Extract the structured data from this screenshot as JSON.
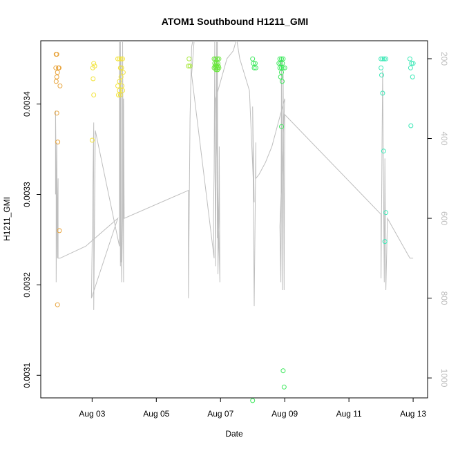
{
  "chart_data": {
    "type": "scatter",
    "title": "ATOM1 Southbound H1211_GMI",
    "xlabel": "Date",
    "ylabel": "H1211_GMI",
    "x_ticks": [
      "Aug 03",
      "Aug 05",
      "Aug 07",
      "Aug 09",
      "Aug 11",
      "Aug 13"
    ],
    "x_tick_days": [
      3,
      5,
      7,
      9,
      11,
      13
    ],
    "xlim": [
      1.4,
      13.45
    ],
    "ylim": [
      0.003075,
      0.00347
    ],
    "y_ticks": [
      "0.0031",
      "0.0032",
      "0.0033",
      "0.0034"
    ],
    "y_tick_values": [
      0.0031,
      0.0032,
      0.0033,
      0.0034
    ],
    "y2_ticks": [
      "200",
      "400",
      "600",
      "800",
      "1000"
    ],
    "y2_tick_values": [
      200,
      400,
      600,
      800,
      1000
    ],
    "y2lim": [
      1050,
      155
    ],
    "line_color": "#bebebe",
    "series": [
      {
        "color": "#e8a33a",
        "points": [
          [
            1.88,
            0.003455
          ],
          [
            1.9,
            0.003455
          ],
          [
            1.87,
            0.00344
          ],
          [
            1.92,
            0.003435
          ],
          [
            1.95,
            0.00344
          ],
          [
            1.97,
            0.00344
          ],
          [
            1.9,
            0.00343
          ],
          [
            1.88,
            0.003425
          ],
          [
            2.0,
            0.00342
          ],
          [
            1.9,
            0.00339
          ],
          [
            1.93,
            0.003358
          ],
          [
            1.98,
            0.00326
          ],
          [
            1.92,
            0.003178
          ]
        ]
      },
      {
        "color": "#f2e33a",
        "points": [
          [
            3.05,
            0.003445
          ],
          [
            3.08,
            0.003442
          ],
          [
            3.02,
            0.00344
          ],
          [
            3.03,
            0.003428
          ],
          [
            3.05,
            0.00341
          ],
          [
            3.0,
            0.00336
          ],
          [
            3.8,
            0.00345
          ],
          [
            3.85,
            0.00345
          ],
          [
            3.9,
            0.00345
          ],
          [
            3.95,
            0.00345
          ],
          [
            3.88,
            0.00344
          ],
          [
            3.92,
            0.00344
          ],
          [
            3.97,
            0.003435
          ],
          [
            3.9,
            0.00343
          ],
          [
            3.85,
            0.003425
          ],
          [
            3.8,
            0.00342
          ],
          [
            3.93,
            0.00342
          ],
          [
            3.85,
            0.003415
          ],
          [
            3.95,
            0.003415
          ],
          [
            3.82,
            0.00341
          ],
          [
            3.88,
            0.00341
          ]
        ]
      },
      {
        "color": "#a6e83a",
        "points": [
          [
            6.0,
            0.003442
          ],
          [
            6.05,
            0.003442
          ],
          [
            6.02,
            0.00345
          ]
        ]
      },
      {
        "color": "#68e83a",
        "points": [
          [
            6.8,
            0.00345
          ],
          [
            6.85,
            0.00345
          ],
          [
            6.9,
            0.00345
          ],
          [
            6.95,
            0.00345
          ],
          [
            6.82,
            0.003445
          ],
          [
            6.87,
            0.003445
          ],
          [
            6.92,
            0.003445
          ],
          [
            6.8,
            0.00344
          ],
          [
            6.85,
            0.00344
          ],
          [
            6.9,
            0.00344
          ],
          [
            6.95,
            0.00344
          ],
          [
            6.83,
            0.003442
          ],
          [
            6.88,
            0.003442
          ],
          [
            6.93,
            0.003442
          ],
          [
            6.86,
            0.003438
          ],
          [
            6.91,
            0.003438
          ]
        ]
      },
      {
        "color": "#3ae85a",
        "points": [
          [
            8.0,
            0.00345
          ],
          [
            8.02,
            0.003445
          ],
          [
            8.05,
            0.00344
          ],
          [
            8.08,
            0.003445
          ],
          [
            8.1,
            0.00344
          ],
          [
            8.0,
            0.003072
          ],
          [
            8.85,
            0.00345
          ],
          [
            8.9,
            0.00345
          ],
          [
            8.95,
            0.00345
          ],
          [
            8.82,
            0.003445
          ],
          [
            8.88,
            0.003445
          ],
          [
            8.93,
            0.003445
          ],
          [
            8.85,
            0.00344
          ],
          [
            8.9,
            0.00344
          ],
          [
            8.95,
            0.00344
          ],
          [
            9.0,
            0.00344
          ],
          [
            8.9,
            0.003435
          ],
          [
            8.87,
            0.00343
          ],
          [
            8.92,
            0.003425
          ],
          [
            8.9,
            0.003375
          ],
          [
            8.95,
            0.003105
          ],
          [
            8.98,
            0.003087
          ]
        ]
      },
      {
        "color": "#3ae8b6",
        "points": [
          [
            12.0,
            0.00345
          ],
          [
            12.05,
            0.00345
          ],
          [
            12.1,
            0.00345
          ],
          [
            12.15,
            0.00345
          ],
          [
            12.0,
            0.00344
          ],
          [
            12.02,
            0.003432
          ],
          [
            12.05,
            0.003412
          ],
          [
            12.08,
            0.003348
          ],
          [
            12.15,
            0.00328
          ],
          [
            12.12,
            0.003248
          ],
          [
            12.9,
            0.00345
          ],
          [
            12.95,
            0.003445
          ],
          [
            13.0,
            0.003445
          ],
          [
            12.92,
            0.00344
          ],
          [
            12.98,
            0.00343
          ],
          [
            12.93,
            0.003376
          ]
        ]
      }
    ],
    "altitude_track": [
      [
        1.86,
        540
      ],
      [
        1.86,
        330
      ],
      [
        1.88,
        500
      ],
      [
        1.88,
        760
      ],
      [
        1.9,
        560
      ],
      [
        1.9,
        410
      ],
      [
        1.92,
        700
      ],
      [
        1.92,
        610
      ],
      [
        1.94,
        500
      ],
      [
        1.94,
        700
      ],
      [
        2.0,
        700
      ],
      [
        2.8,
        670
      ],
      [
        3.8,
        600
      ],
      [
        2.98,
        800
      ],
      [
        3.05,
        360
      ],
      [
        3.05,
        830
      ],
      [
        3.1,
        380
      ],
      [
        3.85,
        670
      ],
      [
        3.85,
        120
      ],
      [
        3.88,
        720
      ],
      [
        3.88,
        150
      ],
      [
        3.9,
        710
      ],
      [
        3.9,
        200
      ],
      [
        3.92,
        760
      ],
      [
        3.95,
        600
      ],
      [
        3.95,
        150
      ],
      [
        3.98,
        760
      ],
      [
        3.98,
        300
      ],
      [
        4.0,
        600
      ],
      [
        6.0,
        530
      ],
      [
        6.0,
        800
      ],
      [
        6.05,
        350
      ],
      [
        6.1,
        170
      ],
      [
        6.2,
        130
      ],
      [
        6.1,
        240
      ],
      [
        6.8,
        700
      ],
      [
        6.78,
        600
      ],
      [
        6.8,
        480
      ],
      [
        6.82,
        150
      ],
      [
        6.84,
        720
      ],
      [
        6.86,
        500
      ],
      [
        6.88,
        150
      ],
      [
        6.9,
        650
      ],
      [
        6.9,
        140
      ],
      [
        6.92,
        740
      ],
      [
        6.95,
        600
      ],
      [
        6.96,
        420
      ],
      [
        6.98,
        760
      ],
      [
        6.85,
        300
      ],
      [
        7.2,
        200
      ],
      [
        7.4,
        180
      ],
      [
        7.5,
        150
      ],
      [
        7.6,
        200
      ],
      [
        7.9,
        280
      ],
      [
        8.05,
        560
      ],
      [
        8.0,
        320
      ],
      [
        8.05,
        820
      ],
      [
        8.1,
        410
      ],
      [
        8.1,
        500
      ],
      [
        8.2,
        490
      ],
      [
        8.4,
        460
      ],
      [
        8.6,
        420
      ],
      [
        8.8,
        360
      ],
      [
        9.0,
        300
      ],
      [
        8.85,
        620
      ],
      [
        8.88,
        760
      ],
      [
        8.9,
        200
      ],
      [
        8.92,
        780
      ],
      [
        8.95,
        220
      ],
      [
        8.98,
        780
      ],
      [
        9.0,
        340
      ],
      [
        12.0,
        590
      ],
      [
        12.0,
        750
      ],
      [
        12.05,
        230
      ],
      [
        12.1,
        760
      ],
      [
        12.12,
        450
      ],
      [
        12.15,
        780
      ],
      [
        12.2,
        600
      ],
      [
        12.9,
        700
      ],
      [
        13.0,
        700
      ]
    ]
  }
}
